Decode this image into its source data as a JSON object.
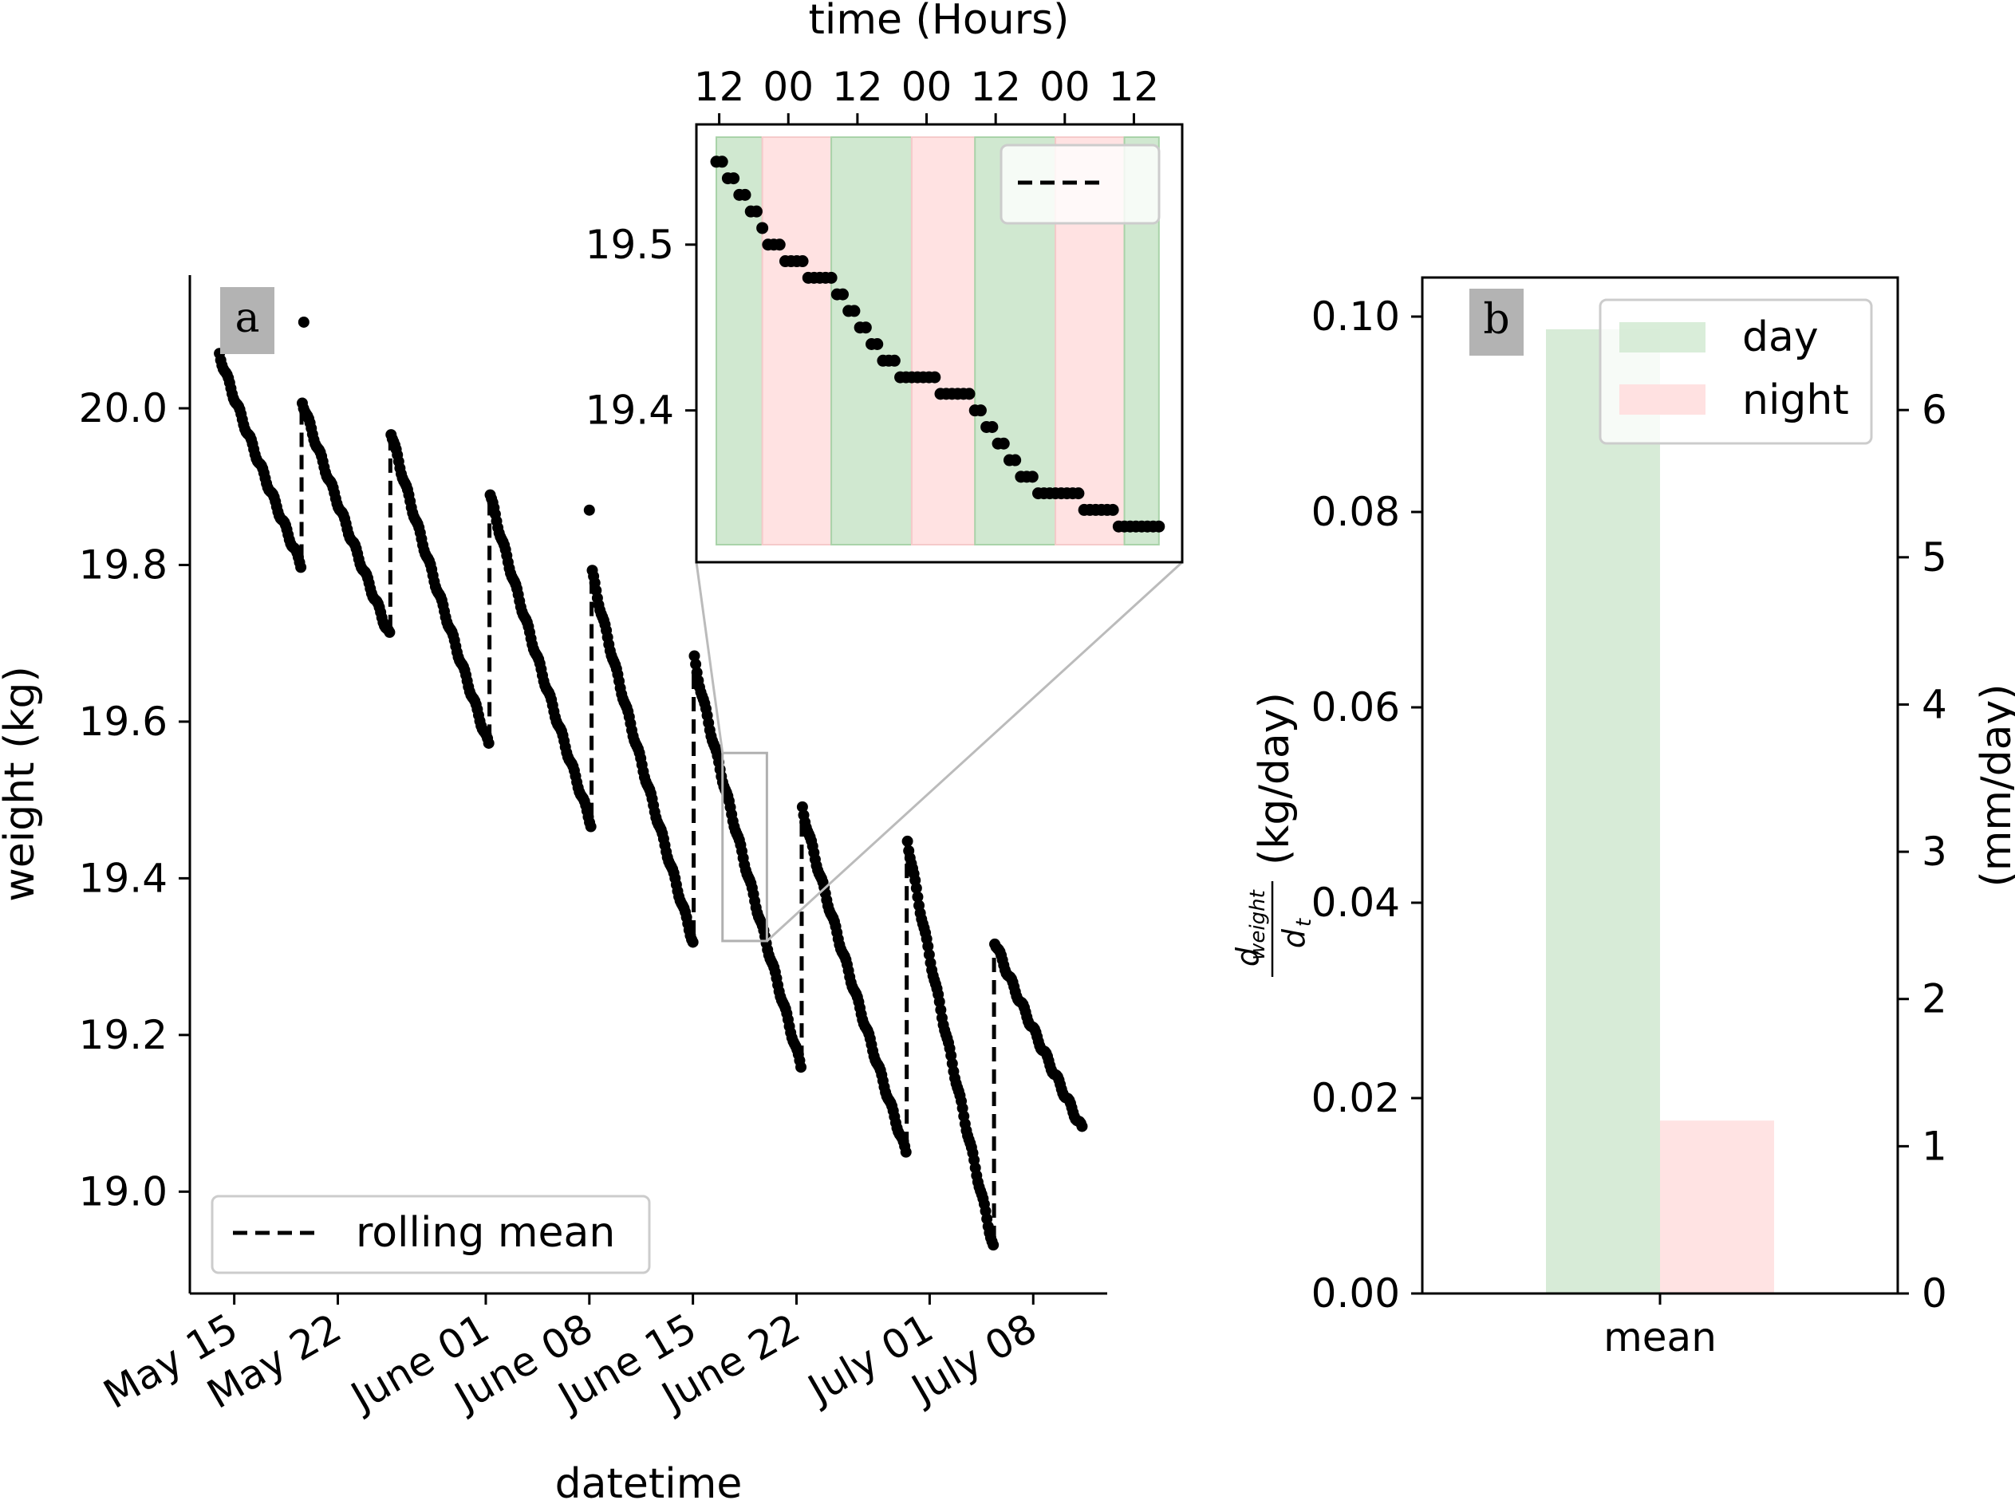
{
  "chart_data": [
    {
      "panel": "a",
      "type": "scatter",
      "xlabel": "datetime",
      "ylabel": "weight (kg)",
      "ylim": [
        18.87,
        20.17
      ],
      "xlim": [
        "2021-05-12",
        "2021-07-13"
      ],
      "x_ticks": [
        {
          "label": "May 15",
          "date": "2021-05-15"
        },
        {
          "label": "May 22",
          "date": "2021-05-22"
        },
        {
          "label": "June 01",
          "date": "2021-06-01"
        },
        {
          "label": "June 08",
          "date": "2021-06-08"
        },
        {
          "label": "June 15",
          "date": "2021-06-15"
        },
        {
          "label": "June 22",
          "date": "2021-06-22"
        },
        {
          "label": "July 01",
          "date": "2021-07-01"
        },
        {
          "label": "July 08",
          "date": "2021-07-08"
        }
      ],
      "y_ticks": [
        {
          "label": "19.0",
          "value": 19.0
        },
        {
          "label": "19.2",
          "value": 19.2
        },
        {
          "label": "19.4",
          "value": 19.4
        },
        {
          "label": "19.6",
          "value": 19.6
        },
        {
          "label": "19.8",
          "value": 19.8
        },
        {
          "label": "20.0",
          "value": 20.0
        }
      ],
      "series": [
        {
          "name": "weight",
          "style": "black dots",
          "color": "#000000",
          "segments": [
            {
              "start": [
                "2021-05-14",
                20.07
              ],
              "end": [
                "2021-05-19.5",
                19.8
              ]
            },
            {
              "start": [
                "2021-05-19.6",
                20.01
              ],
              "end": [
                "2021-05-25.5",
                19.71
              ]
            },
            {
              "start": [
                "2021-05-25.6",
                19.97
              ],
              "end": [
                "2021-06-01.2",
                19.57
              ]
            },
            {
              "start": [
                "2021-06-01.3",
                19.89
              ],
              "end": [
                "2021-06-08.1",
                19.47
              ]
            },
            {
              "start": [
                "2021-06-08.2",
                19.79
              ],
              "end": [
                "2021-06-15.0",
                19.32
              ]
            },
            {
              "start": [
                "2021-06-15.1",
                19.68
              ],
              "end": [
                "2021-06-22.3",
                19.16
              ]
            },
            {
              "start": [
                "2021-06-22.4",
                19.49
              ],
              "end": [
                "2021-06-29.4",
                19.05
              ]
            },
            {
              "start": [
                "2021-06-29.5",
                19.45
              ],
              "end": [
                "2021-07-05.3",
                18.93
              ]
            },
            {
              "start": [
                "2021-07-05.4",
                19.32
              ],
              "end": [
                "2021-07-11.3",
                19.08
              ]
            }
          ],
          "outliers": [
            {
              "date": "2021-05-19.7",
              "value": 20.11
            },
            {
              "date": "2021-06-08.0",
              "value": 19.87
            }
          ]
        },
        {
          "name": "rolling mean",
          "style": "dashed black line",
          "color": "#000000"
        }
      ],
      "legend": {
        "entries": [
          "rolling mean"
        ],
        "placement": "lower-left"
      },
      "panel_label": "a",
      "zoom_box": {
        "x": [
          "2021-06-17",
          "2021-06-20"
        ],
        "y": [
          19.32,
          19.56
        ]
      },
      "grid": false
    },
    {
      "panel": "inset",
      "type": "scatter",
      "xlabel": "time (Hours)",
      "x_tick_labels": [
        "12",
        "00",
        "12",
        "00",
        "12",
        "00",
        "12"
      ],
      "y_ticks": [
        {
          "label": "19.4",
          "value": 19.4
        },
        {
          "label": "19.5",
          "value": 19.5
        }
      ],
      "ylim": [
        19.32,
        19.56
      ],
      "x_range_hours": [
        0,
        78
      ],
      "shading": [
        {
          "period": "day",
          "color": "#d0e8d0",
          "start_h": 0,
          "end_h": 8
        },
        {
          "period": "night",
          "color": "#ffe2e2",
          "start_h": 8,
          "end_h": 20
        },
        {
          "period": "day",
          "color": "#d0e8d0",
          "start_h": 20,
          "end_h": 34
        },
        {
          "period": "night",
          "color": "#ffe2e2",
          "start_h": 34,
          "end_h": 45
        },
        {
          "period": "day",
          "color": "#d0e8d0",
          "start_h": 45,
          "end_h": 59
        },
        {
          "period": "night",
          "color": "#ffe2e2",
          "start_h": 59,
          "end_h": 71
        },
        {
          "period": "day",
          "color": "#d0e8d0",
          "start_h": 71,
          "end_h": 77
        }
      ],
      "series": [
        {
          "name": "weight",
          "color": "#000000",
          "points": [
            [
              0,
              19.55
            ],
            [
              1,
              19.55
            ],
            [
              2,
              19.54
            ],
            [
              3,
              19.54
            ],
            [
              4,
              19.53
            ],
            [
              5,
              19.53
            ],
            [
              6,
              19.52
            ],
            [
              7,
              19.52
            ],
            [
              8,
              19.51
            ],
            [
              9,
              19.5
            ],
            [
              10,
              19.5
            ],
            [
              11,
              19.5
            ],
            [
              12,
              19.49
            ],
            [
              13,
              19.49
            ],
            [
              14,
              19.49
            ],
            [
              15,
              19.49
            ],
            [
              16,
              19.48
            ],
            [
              17,
              19.48
            ],
            [
              18,
              19.48
            ],
            [
              19,
              19.48
            ],
            [
              20,
              19.48
            ],
            [
              21,
              19.47
            ],
            [
              22,
              19.47
            ],
            [
              23,
              19.46
            ],
            [
              24,
              19.46
            ],
            [
              25,
              19.45
            ],
            [
              26,
              19.45
            ],
            [
              27,
              19.44
            ],
            [
              28,
              19.44
            ],
            [
              29,
              19.43
            ],
            [
              30,
              19.43
            ],
            [
              31,
              19.43
            ],
            [
              32,
              19.42
            ],
            [
              33,
              19.42
            ],
            [
              34,
              19.42
            ],
            [
              35,
              19.42
            ],
            [
              36,
              19.42
            ],
            [
              37,
              19.42
            ],
            [
              38,
              19.42
            ],
            [
              39,
              19.41
            ],
            [
              40,
              19.41
            ],
            [
              41,
              19.41
            ],
            [
              42,
              19.41
            ],
            [
              43,
              19.41
            ],
            [
              44,
              19.41
            ],
            [
              45,
              19.4
            ],
            [
              46,
              19.4
            ],
            [
              47,
              19.39
            ],
            [
              48,
              19.39
            ],
            [
              49,
              19.38
            ],
            [
              50,
              19.38
            ],
            [
              51,
              19.37
            ],
            [
              52,
              19.37
            ],
            [
              53,
              19.36
            ],
            [
              54,
              19.36
            ],
            [
              55,
              19.36
            ],
            [
              56,
              19.35
            ],
            [
              57,
              19.35
            ],
            [
              58,
              19.35
            ],
            [
              59,
              19.35
            ],
            [
              60,
              19.35
            ],
            [
              61,
              19.35
            ],
            [
              62,
              19.35
            ],
            [
              63,
              19.35
            ],
            [
              64,
              19.34
            ],
            [
              65,
              19.34
            ],
            [
              66,
              19.34
            ],
            [
              67,
              19.34
            ],
            [
              68,
              19.34
            ],
            [
              69,
              19.34
            ],
            [
              70,
              19.33
            ],
            [
              71,
              19.33
            ],
            [
              72,
              19.33
            ],
            [
              73,
              19.33
            ],
            [
              74,
              19.33
            ],
            [
              75,
              19.33
            ],
            [
              76,
              19.33
            ],
            [
              77,
              19.33
            ]
          ]
        }
      ],
      "legend": {
        "entries": [
          ""
        ],
        "placement": "top-right"
      }
    },
    {
      "panel": "b",
      "type": "bar",
      "categories": [
        "mean"
      ],
      "ylabel": "(kg/day)",
      "ylabel_fraction": {
        "numerator": "d",
        "numerator_sub": "weight",
        "denominator": "d",
        "denominator_sub": "t"
      },
      "ylabel_right": "(mm/day)",
      "ylim": [
        0,
        0.104
      ],
      "ylim_right": [
        0,
        6.9
      ],
      "y_ticks": [
        "0.00",
        "0.02",
        "0.04",
        "0.06",
        "0.08",
        "0.10"
      ],
      "y_ticks_right": [
        "0",
        "1",
        "2",
        "3",
        "4",
        "5",
        "6"
      ],
      "series": [
        {
          "name": "day",
          "values": [
            0.0987
          ],
          "color": "#d0e8d0"
        },
        {
          "name": "night",
          "values": [
            0.0177
          ],
          "color": "#ffdede"
        }
      ],
      "legend": {
        "entries": [
          "day",
          "night"
        ],
        "placement": "top-right"
      },
      "panel_label": "b",
      "grid": false
    }
  ]
}
